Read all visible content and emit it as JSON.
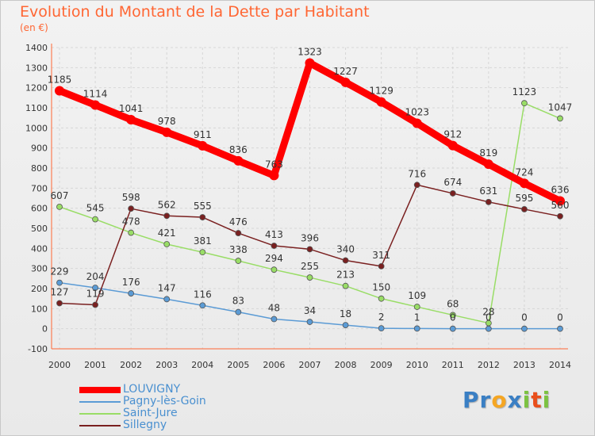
{
  "chart_data": {
    "type": "line",
    "title": "Evolution du Montant de la Dette par Habitant",
    "subtitle": "(en €)",
    "x": [
      "2000",
      "2001",
      "2002",
      "2003",
      "2004",
      "2005",
      "2006",
      "2007",
      "2008",
      "2009",
      "2010",
      "2011",
      "2012",
      "2013",
      "2014"
    ],
    "ylim": [
      -100,
      1400
    ],
    "yticks": [
      -100,
      0,
      100,
      200,
      300,
      400,
      500,
      600,
      700,
      800,
      900,
      1000,
      1100,
      1200,
      1300,
      1400
    ],
    "grid": true,
    "legend_position": "bottom-left",
    "series": [
      {
        "name": "LOUVIGNY",
        "color": "#ff0000",
        "values": [
          1185,
          1114,
          1041,
          978,
          911,
          836,
          763,
          1323,
          1227,
          1129,
          1023,
          912,
          819,
          724,
          636
        ],
        "labels": [
          "1185",
          "1114",
          "1041",
          "978",
          "911",
          "836",
          "763",
          "1323",
          "1227",
          "1129",
          "1023",
          "912",
          "819",
          "724",
          "636"
        ]
      },
      {
        "name": "Pagny-lès-Goin",
        "color": "#5b9bd5",
        "values": [
          229,
          204,
          176,
          147,
          116,
          83,
          48,
          34,
          18,
          2,
          1,
          0,
          0,
          0,
          0
        ],
        "labels": [
          "229",
          "204",
          "176",
          "147",
          "116",
          "83",
          "48",
          "34",
          "18",
          "2",
          "1",
          "0",
          "0",
          "0",
          "0"
        ]
      },
      {
        "name": "Saint-Jure",
        "color": "#99dd66",
        "values": [
          607,
          545,
          478,
          421,
          381,
          338,
          294,
          255,
          213,
          150,
          109,
          68,
          28,
          1123,
          1047
        ],
        "labels": [
          "607",
          "545",
          "478",
          "421",
          "381",
          "338",
          "294",
          "255",
          "213",
          "150",
          "109",
          "68",
          "28",
          "1123",
          "1047"
        ]
      },
      {
        "name": "Sillegny",
        "color": "#7a2020",
        "values": [
          127,
          119,
          598,
          562,
          555,
          476,
          413,
          396,
          340,
          311,
          716,
          674,
          631,
          595,
          560
        ],
        "labels": [
          "127",
          "119",
          "598",
          "562",
          "555",
          "476",
          "413",
          "396",
          "340",
          "311",
          "716",
          "674",
          "631",
          "595",
          "560"
        ]
      }
    ]
  },
  "logo": {
    "letters": [
      {
        "ch": "P",
        "color": "#3a7fc4"
      },
      {
        "ch": "r",
        "color": "#3a7fc4"
      },
      {
        "ch": "o",
        "color": "#f5a623"
      },
      {
        "ch": "x",
        "color": "#3a7fc4"
      },
      {
        "ch": "i",
        "color": "#7cc242"
      },
      {
        "ch": "t",
        "color": "#e94e1b"
      },
      {
        "ch": "i",
        "color": "#7cc242"
      }
    ]
  }
}
